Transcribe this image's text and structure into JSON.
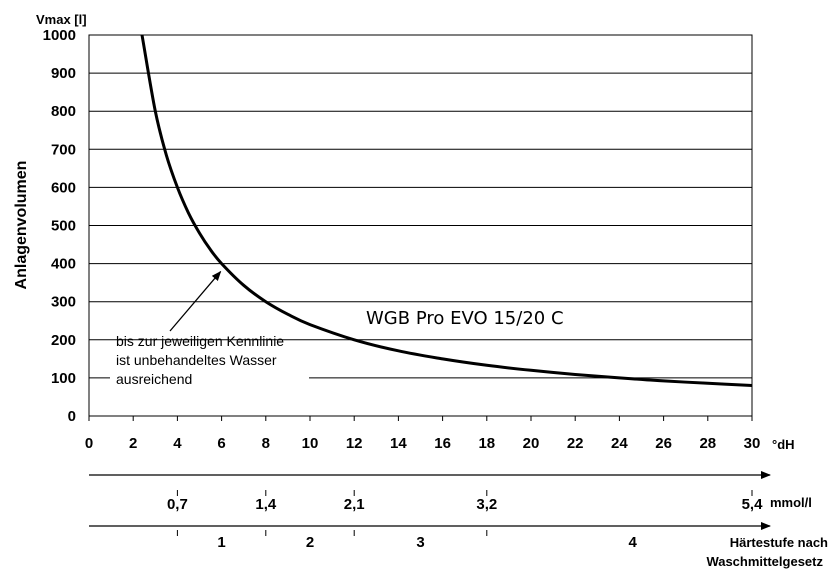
{
  "chart_data": {
    "type": "line",
    "ylabel": "Anlagenvolumen",
    "yunit": "Vmax [l]",
    "xunit": "°dH",
    "ylim": [
      0,
      1000
    ],
    "xlim": [
      0,
      30
    ],
    "yticks": [
      "0",
      "100",
      "200",
      "300",
      "400",
      "500",
      "600",
      "700",
      "800",
      "900",
      "1000"
    ],
    "xticks": [
      "0",
      "2",
      "4",
      "6",
      "8",
      "10",
      "12",
      "14",
      "16",
      "18",
      "20",
      "22",
      "24",
      "26",
      "28",
      "30"
    ],
    "grid": "horizontal",
    "series": [
      {
        "name": "WGB Pro EVO 15/20 C",
        "x": [
          2.4,
          3,
          3.5,
          4,
          4.5,
          5,
          5.5,
          6,
          7,
          8,
          9,
          10,
          12,
          14,
          16,
          18,
          20,
          22,
          24,
          26,
          28,
          30
        ],
        "y": [
          1000,
          800,
          685,
          600,
          533,
          480,
          436,
          400,
          343,
          300,
          267,
          240,
          200,
          171,
          150,
          133,
          120,
          109,
          100,
          92,
          86,
          80
        ]
      }
    ],
    "annotation": {
      "lines": [
        "bis zur jeweiligen Kennlinie",
        "ist unbehandeltes Wasser",
        "ausreichend"
      ],
      "arrow_to": [
        6,
        400
      ]
    },
    "scale_mmol": {
      "unit": "mmol/l",
      "marks": [
        {
          "dH": 4,
          "label": "0,7"
        },
        {
          "dH": 8,
          "label": "1,4"
        },
        {
          "dH": 12,
          "label": "2,1"
        },
        {
          "dH": 18,
          "label": "3,2"
        },
        {
          "dH": 30,
          "label": "5,4"
        }
      ]
    },
    "scale_haerte": {
      "unit_lines": [
        "Härtestufe nach",
        "Waschmittelgesetz"
      ],
      "boundaries": [
        4,
        8,
        12,
        18
      ],
      "zones": [
        {
          "from": 4,
          "to": 8,
          "label": "1"
        },
        {
          "from": 8,
          "to": 12,
          "label": "2"
        },
        {
          "from": 12,
          "to": 18,
          "label": "3"
        },
        {
          "from": 18,
          "to": 30,
          "label": "4"
        }
      ]
    }
  }
}
